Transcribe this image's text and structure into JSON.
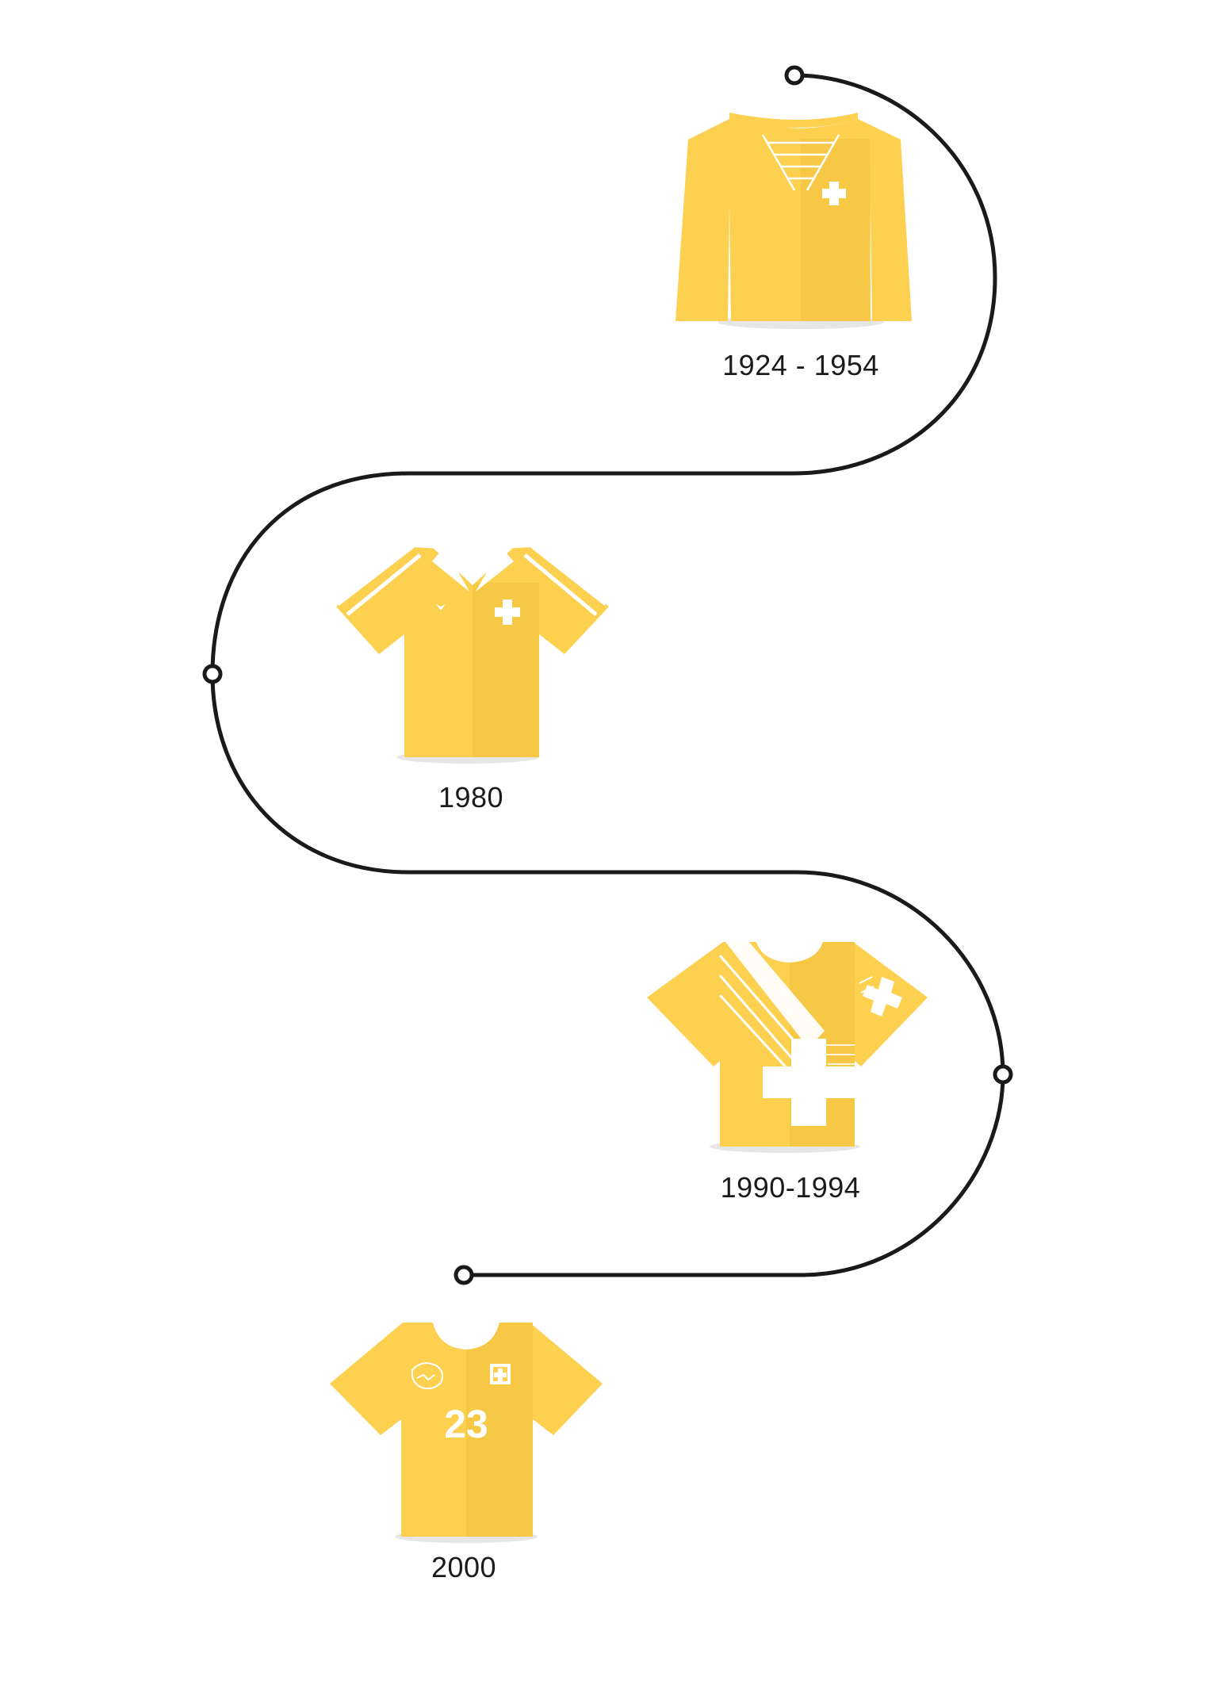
{
  "colors": {
    "path": "#1a1a1a",
    "jersey_main": "#FED050",
    "jersey_fold": "#F7C746",
    "jersey_shadow": "#E6E6E6",
    "detail": "#FFFFFF"
  },
  "timeline": [
    {
      "year": "1924 - 1954",
      "icon": "long-sleeve-laced-jersey-icon"
    },
    {
      "year": "1980",
      "icon": "striped-collar-jersey-icon"
    },
    {
      "year": "1990-1994",
      "icon": "diagonal-stripe-cross-jersey-icon"
    },
    {
      "year": "2000",
      "icon": "number-23-jersey-icon",
      "number": "23"
    }
  ]
}
